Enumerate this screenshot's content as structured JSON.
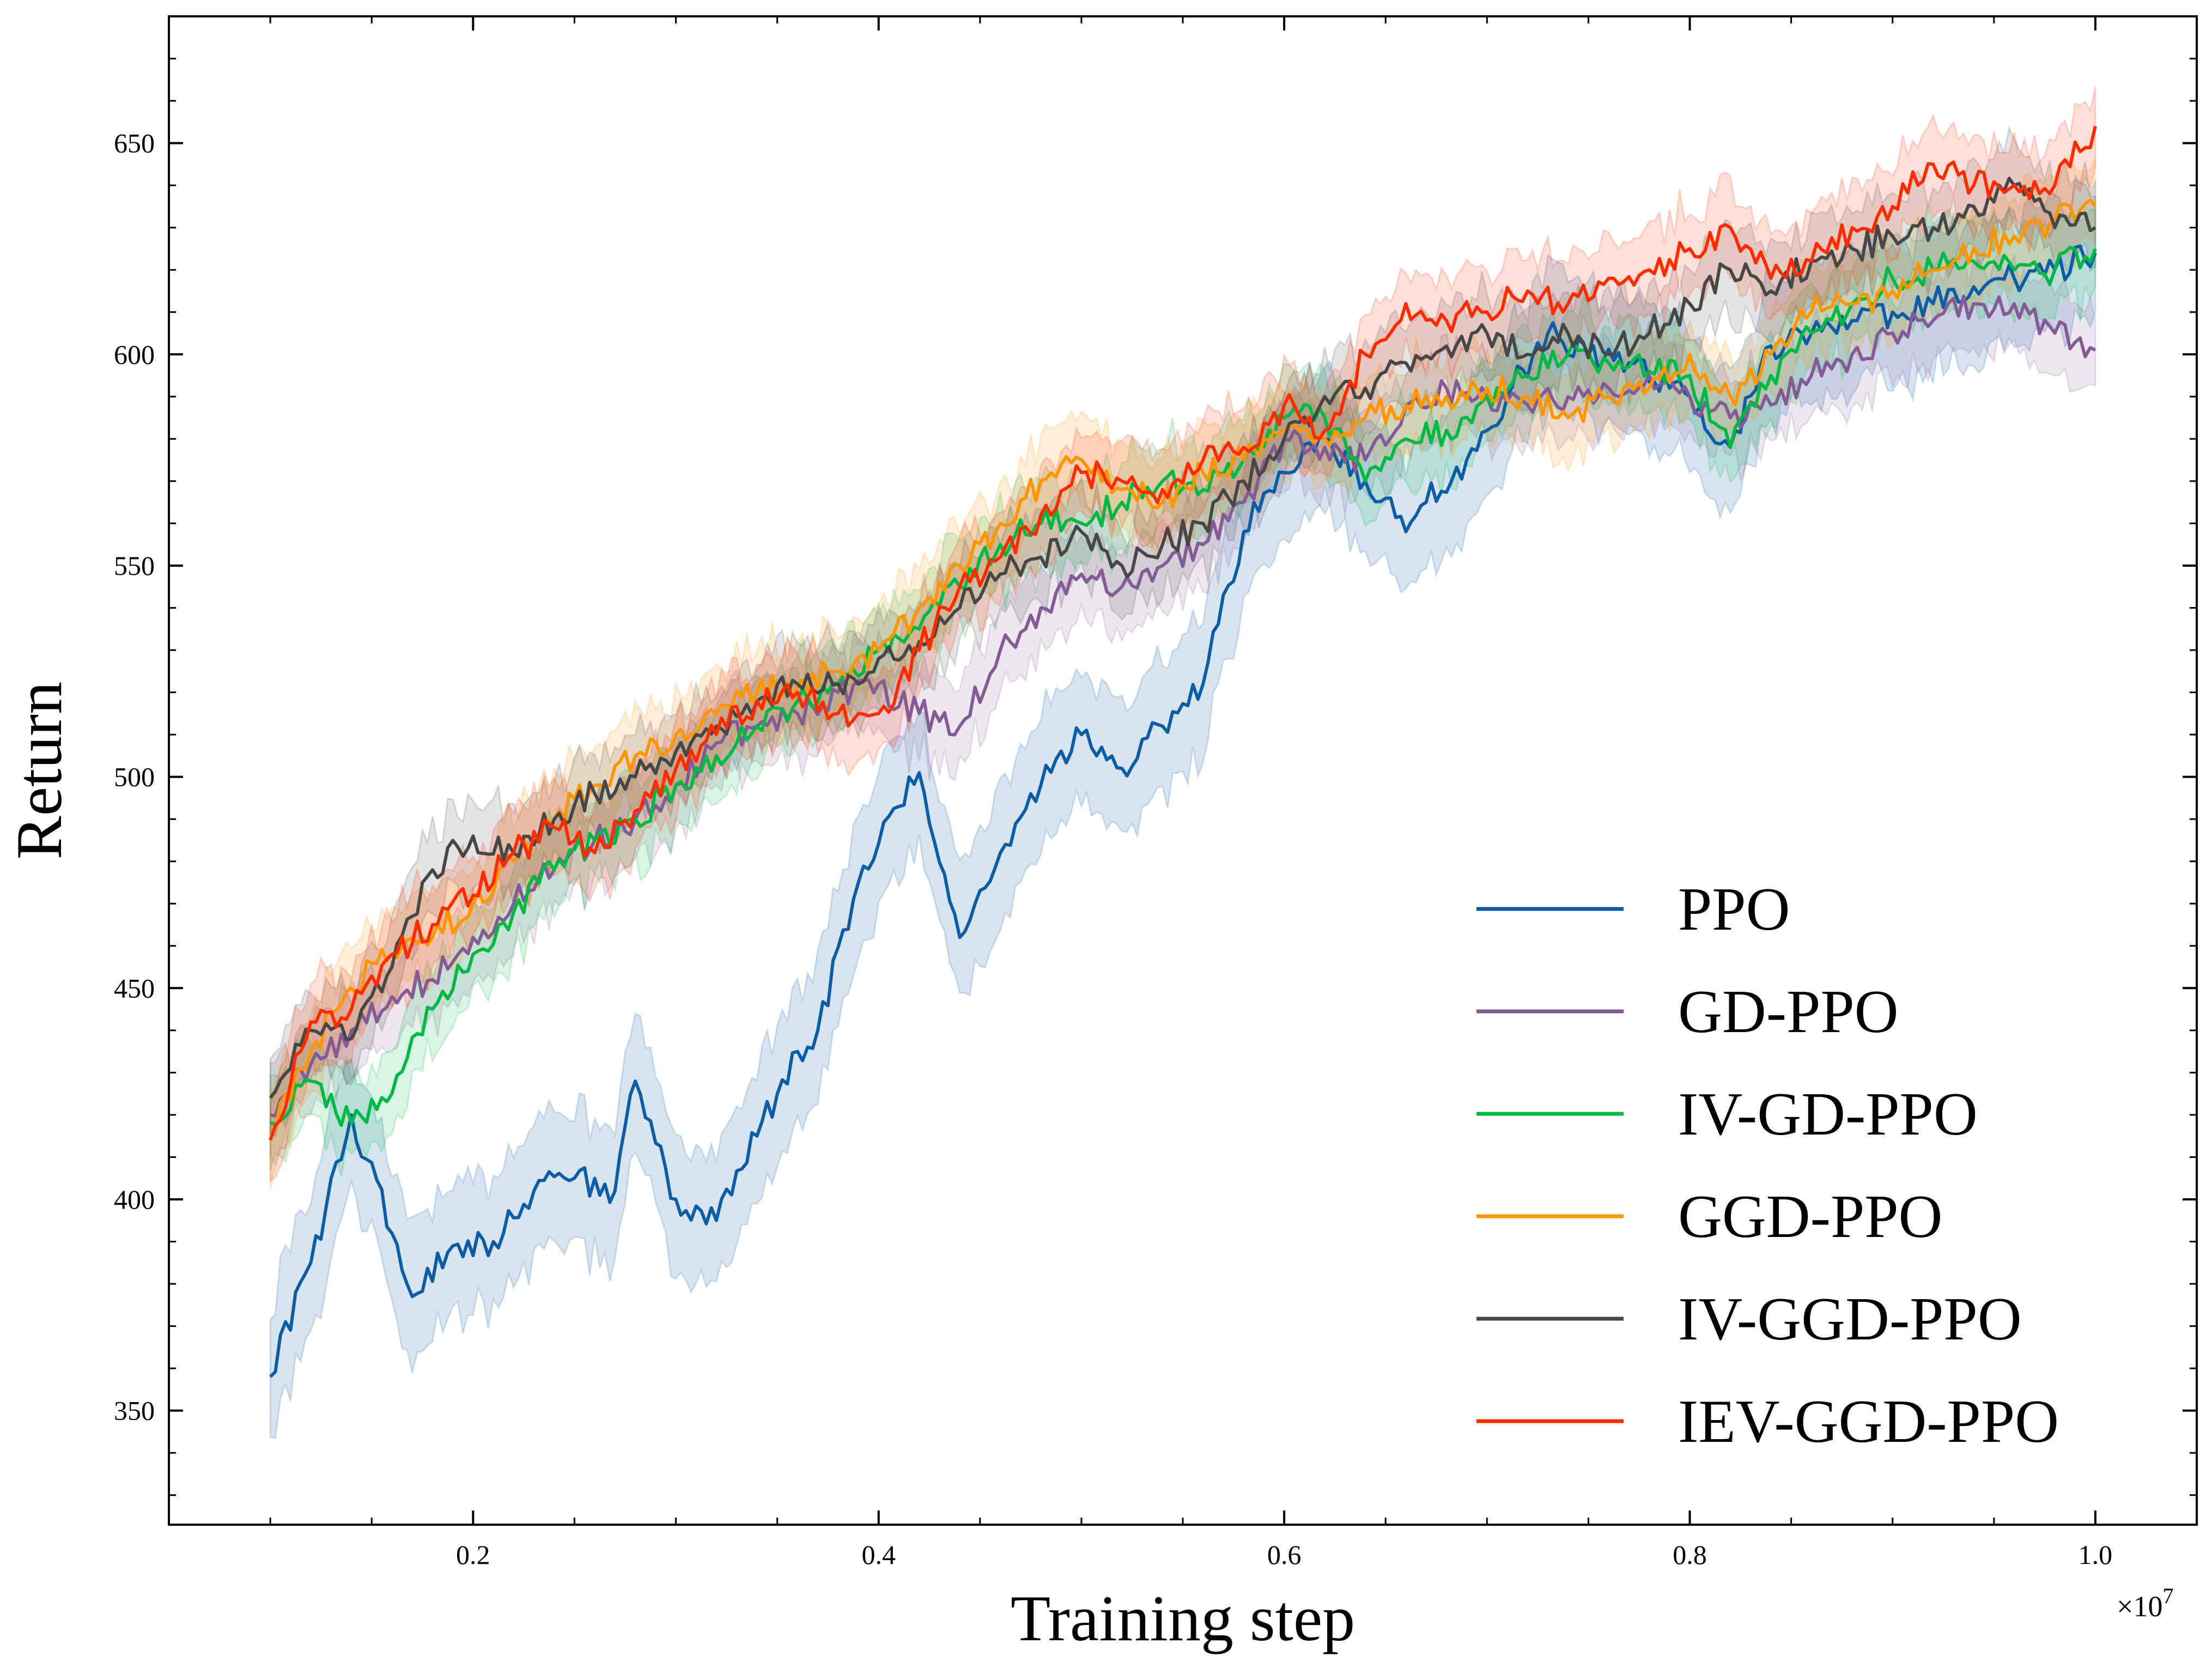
{
  "chart_data": {
    "type": "line",
    "title": "",
    "xlabel": "Training step",
    "ylabel": "Return",
    "x_scale_label": "×10",
    "x_scale_exponent": "7",
    "xlim": [
      0.05,
      1.05
    ],
    "ylim": [
      323,
      680
    ],
    "xticks": [
      0.2,
      0.4,
      0.6,
      0.8,
      1.0
    ],
    "xtick_labels": [
      "0.2",
      "0.4",
      "0.6",
      "0.8",
      "1.0"
    ],
    "yticks": [
      350,
      400,
      450,
      500,
      550,
      600,
      650
    ],
    "ytick_labels": [
      "350",
      "400",
      "450",
      "500",
      "550",
      "600",
      "650"
    ],
    "grid": false,
    "legend_position": "bottom-right",
    "shaded_band": "min-max range",
    "series": [
      {
        "name": "PPO",
        "color": "#0c5da5",
        "band": 16,
        "x": [
          0.1,
          0.12,
          0.14,
          0.16,
          0.17,
          0.19,
          0.21,
          0.23,
          0.25,
          0.27,
          0.28,
          0.3,
          0.32,
          0.34,
          0.36,
          0.37,
          0.39,
          0.41,
          0.42,
          0.44,
          0.46,
          0.48,
          0.5,
          0.52,
          0.54,
          0.56,
          0.58,
          0.6,
          0.62,
          0.64,
          0.66,
          0.67,
          0.69,
          0.71,
          0.73,
          0.75,
          0.77,
          0.79,
          0.8,
          0.82,
          0.84,
          0.86,
          0.88,
          0.9,
          0.92,
          0.94,
          0.96,
          0.98,
          1.0
        ],
        "y": [
          358,
          385,
          420,
          392,
          377,
          389,
          390,
          402,
          405,
          402,
          428,
          400,
          395,
          415,
          435,
          440,
          475,
          493,
          501,
          462,
          482,
          498,
          510,
          502,
          512,
          522,
          558,
          572,
          580,
          570,
          558,
          565,
          575,
          590,
          605,
          600,
          598,
          592,
          590,
          578,
          602,
          605,
          608,
          610,
          612,
          616,
          618,
          620,
          624
        ]
      },
      {
        "name": "GD-PPO",
        "color": "#845b97",
        "band": 10,
        "x": [
          0.1,
          0.12,
          0.14,
          0.16,
          0.18,
          0.2,
          0.22,
          0.24,
          0.26,
          0.28,
          0.3,
          0.32,
          0.34,
          0.36,
          0.38,
          0.4,
          0.42,
          0.44,
          0.46,
          0.48,
          0.5,
          0.52,
          0.54,
          0.56,
          0.58,
          0.6,
          0.62,
          0.64,
          0.66,
          0.68,
          0.7,
          0.72,
          0.74,
          0.76,
          0.78,
          0.8,
          0.82,
          0.84,
          0.86,
          0.88,
          0.9,
          0.92,
          0.94,
          0.96,
          0.98,
          1.0
        ],
        "y": [
          420,
          432,
          440,
          448,
          452,
          462,
          470,
          478,
          485,
          490,
          498,
          508,
          512,
          515,
          520,
          522,
          515,
          512,
          530,
          540,
          548,
          545,
          550,
          555,
          565,
          580,
          578,
          575,
          588,
          592,
          590,
          588,
          590,
          592,
          595,
          590,
          585,
          588,
          595,
          600,
          605,
          608,
          612,
          612,
          605,
          601
        ]
      },
      {
        "name": "IV-GD-PPO",
        "color": "#00b945",
        "band": 10,
        "x": [
          0.1,
          0.12,
          0.14,
          0.16,
          0.18,
          0.2,
          0.22,
          0.24,
          0.26,
          0.28,
          0.3,
          0.32,
          0.34,
          0.36,
          0.38,
          0.4,
          0.42,
          0.44,
          0.46,
          0.48,
          0.5,
          0.52,
          0.54,
          0.56,
          0.58,
          0.6,
          0.62,
          0.64,
          0.66,
          0.68,
          0.7,
          0.72,
          0.74,
          0.76,
          0.78,
          0.8,
          0.82,
          0.84,
          0.86,
          0.88,
          0.9,
          0.92,
          0.94,
          0.96,
          0.98,
          1.0
        ],
        "y": [
          418,
          428,
          418,
          425,
          445,
          458,
          468,
          478,
          485,
          490,
          498,
          505,
          512,
          518,
          522,
          530,
          535,
          545,
          555,
          560,
          560,
          565,
          570,
          568,
          575,
          585,
          585,
          570,
          580,
          582,
          590,
          595,
          600,
          598,
          596,
          595,
          578,
          595,
          605,
          612,
          618,
          620,
          622,
          620,
          620,
          625
        ]
      },
      {
        "name": "GGD-PPO",
        "color": "#ff9500",
        "band": 10,
        "x": [
          0.1,
          0.12,
          0.14,
          0.16,
          0.18,
          0.2,
          0.22,
          0.24,
          0.26,
          0.28,
          0.3,
          0.32,
          0.34,
          0.36,
          0.38,
          0.4,
          0.42,
          0.44,
          0.46,
          0.48,
          0.5,
          0.52,
          0.54,
          0.56,
          0.58,
          0.6,
          0.62,
          0.64,
          0.66,
          0.68,
          0.7,
          0.72,
          0.74,
          0.76,
          0.78,
          0.8,
          0.82,
          0.84,
          0.86,
          0.88,
          0.9,
          0.92,
          0.94,
          0.96,
          0.98,
          1.0
        ],
        "y": [
          415,
          435,
          450,
          458,
          462,
          470,
          480,
          490,
          498,
          505,
          510,
          515,
          520,
          522,
          525,
          530,
          540,
          550,
          560,
          570,
          575,
          568,
          565,
          572,
          575,
          582,
          580,
          585,
          588,
          590,
          592,
          590,
          585,
          590,
          592,
          600,
          590,
          600,
          610,
          612,
          615,
          620,
          625,
          628,
          632,
          635
        ]
      },
      {
        "name": "IV-GGD-PPO",
        "color": "#474747",
        "band": 10,
        "x": [
          0.1,
          0.12,
          0.14,
          0.16,
          0.18,
          0.2,
          0.22,
          0.24,
          0.26,
          0.28,
          0.3,
          0.32,
          0.34,
          0.36,
          0.38,
          0.4,
          0.42,
          0.44,
          0.46,
          0.48,
          0.5,
          0.52,
          0.54,
          0.56,
          0.58,
          0.6,
          0.62,
          0.64,
          0.66,
          0.68,
          0.7,
          0.72,
          0.74,
          0.76,
          0.78,
          0.8,
          0.82,
          0.84,
          0.86,
          0.88,
          0.9,
          0.92,
          0.94,
          0.96,
          0.98,
          1.0
        ],
        "y": [
          424,
          440,
          438,
          455,
          478,
          486,
          482,
          490,
          496,
          500,
          506,
          512,
          518,
          522,
          522,
          528,
          532,
          540,
          548,
          552,
          558,
          550,
          555,
          560,
          570,
          580,
          590,
          592,
          598,
          602,
          605,
          600,
          605,
          600,
          605,
          612,
          620,
          615,
          622,
          625,
          628,
          630,
          635,
          640,
          630,
          630
        ]
      },
      {
        "name": "IEV-GGD-PPO",
        "color": "#ff2c00",
        "band": 10,
        "x": [
          0.1,
          0.12,
          0.14,
          0.16,
          0.18,
          0.2,
          0.22,
          0.24,
          0.26,
          0.28,
          0.3,
          0.32,
          0.34,
          0.36,
          0.38,
          0.4,
          0.42,
          0.44,
          0.46,
          0.48,
          0.5,
          0.52,
          0.54,
          0.56,
          0.58,
          0.6,
          0.62,
          0.64,
          0.66,
          0.68,
          0.7,
          0.72,
          0.74,
          0.76,
          0.78,
          0.8,
          0.82,
          0.84,
          0.86,
          0.88,
          0.9,
          0.92,
          0.94,
          0.96,
          0.98,
          1.0
        ],
        "y": [
          414,
          442,
          445,
          458,
          465,
          472,
          482,
          488,
          482,
          492,
          502,
          510,
          518,
          520,
          515,
          515,
          530,
          545,
          552,
          562,
          572,
          570,
          568,
          575,
          578,
          588,
          582,
          600,
          612,
          608,
          610,
          615,
          612,
          618,
          620,
          625,
          630,
          618,
          622,
          630,
          635,
          645,
          640,
          640,
          640,
          654
        ]
      }
    ]
  }
}
